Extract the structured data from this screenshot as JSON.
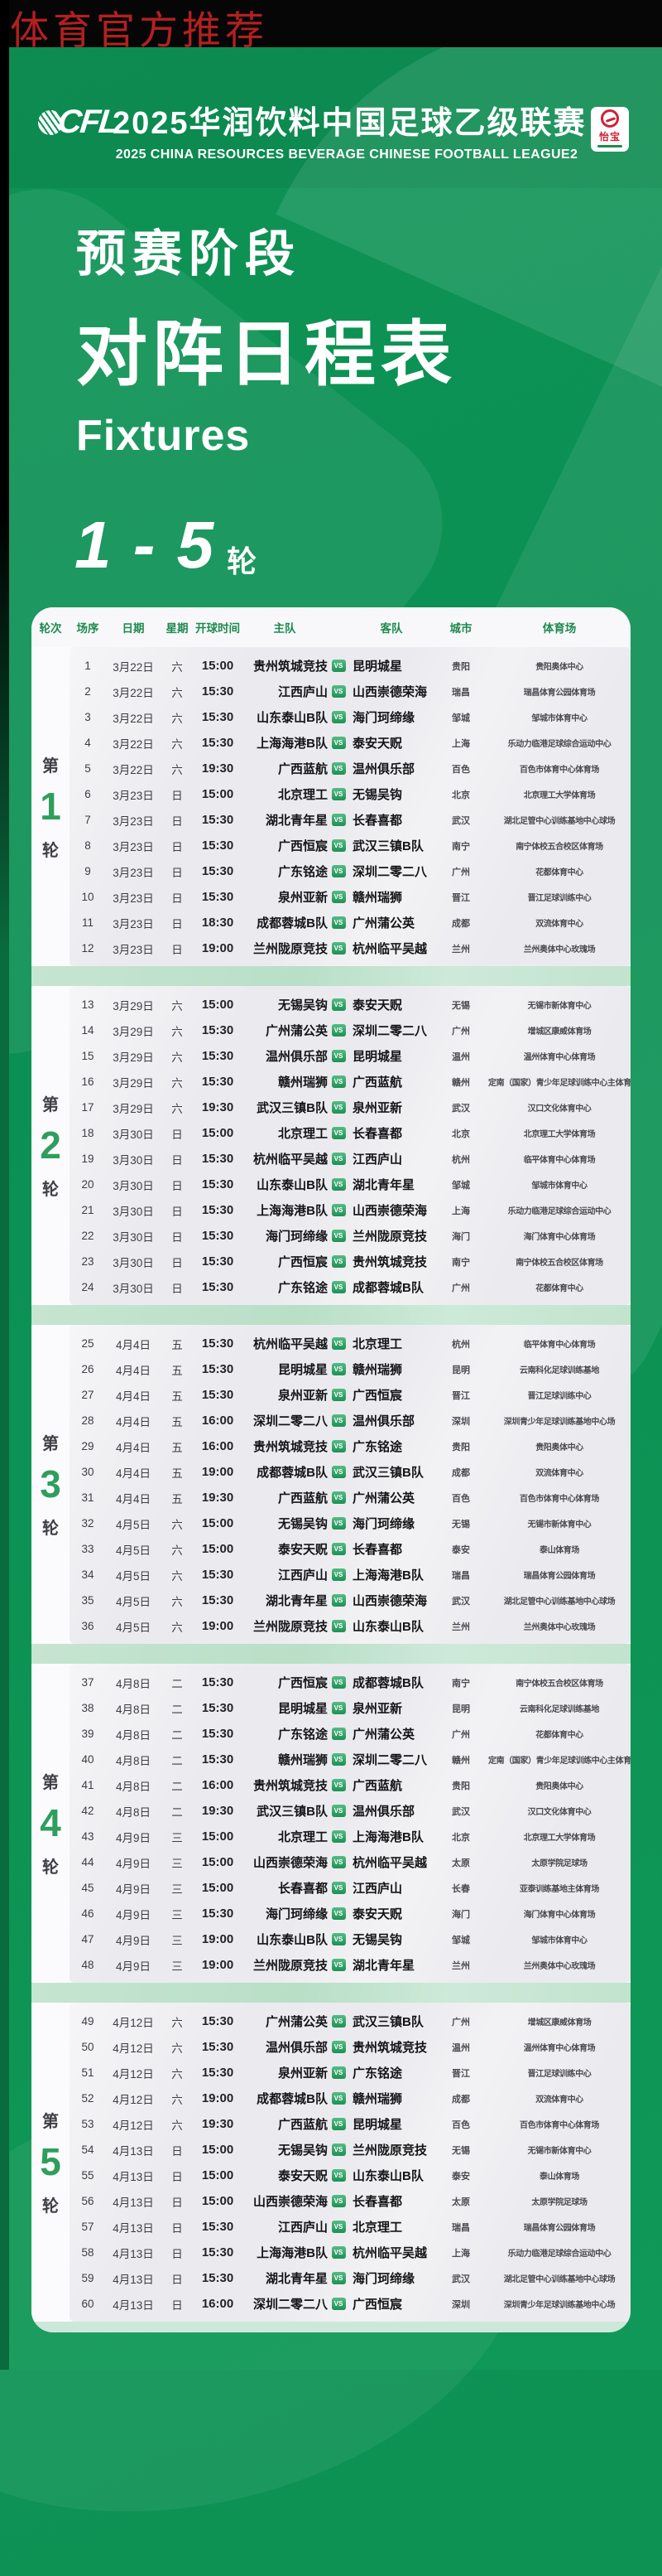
{
  "watermark": "体育官方推荐",
  "header": {
    "logo": "CFL",
    "title_cn": "2025华润饮料中国足球乙级联赛",
    "title_en": "2025 CHINA RESOURCES BEVERAGE CHINESE FOOTBALL LEAGUE2",
    "sponsor_name": "怡宝"
  },
  "hero": {
    "stage": "预赛阶段",
    "title": "对阵日程表",
    "subtitle": "Fixtures",
    "rounds_range": "1 - 5",
    "rounds_unit": "轮"
  },
  "colors": {
    "background_green": "#0e9355",
    "accent_green": "#2f9e5c",
    "header_label_green": "#1e8a4f",
    "watermark_red": "#b32020",
    "panel_gray": "#ebebef",
    "separator_green": "#c3e4cf"
  },
  "table": {
    "columns": [
      "轮次",
      "场序",
      "日期",
      "星期",
      "开球时间",
      "主队",
      "客队",
      "城市",
      "体育场"
    ],
    "vs_label": "VS",
    "round_prefix": "第",
    "round_suffix": "轮",
    "rounds": [
      {
        "round_number": "1",
        "matches": [
          {
            "seq": "1",
            "date": "3月22日",
            "week": "六",
            "time": "15:00",
            "home": "贵州筑城竞技",
            "away": "昆明城星",
            "city": "贵阳",
            "stadium": "贵阳奥体中心"
          },
          {
            "seq": "2",
            "date": "3月22日",
            "week": "六",
            "time": "15:30",
            "home": "江西庐山",
            "away": "山西崇德荣海",
            "city": "瑞昌",
            "stadium": "瑞昌体育公园体育场"
          },
          {
            "seq": "3",
            "date": "3月22日",
            "week": "六",
            "time": "15:30",
            "home": "山东泰山B队",
            "away": "海门珂缔缘",
            "city": "邹城",
            "stadium": "邹城市体育中心"
          },
          {
            "seq": "4",
            "date": "3月22日",
            "week": "六",
            "time": "15:30",
            "home": "上海海港B队",
            "away": "泰安天贶",
            "city": "上海",
            "stadium": "乐动力临港足球综合运动中心"
          },
          {
            "seq": "5",
            "date": "3月22日",
            "week": "六",
            "time": "19:30",
            "home": "广西蓝航",
            "away": "温州俱乐部",
            "city": "百色",
            "stadium": "百色市体育中心体育场"
          },
          {
            "seq": "6",
            "date": "3月23日",
            "week": "日",
            "time": "15:00",
            "home": "北京理工",
            "away": "无锡吴钩",
            "city": "北京",
            "stadium": "北京理工大学体育场"
          },
          {
            "seq": "7",
            "date": "3月23日",
            "week": "日",
            "time": "15:30",
            "home": "湖北青年星",
            "away": "长春喜都",
            "city": "武汉",
            "stadium": "湖北足管中心训练基地中心球场"
          },
          {
            "seq": "8",
            "date": "3月23日",
            "week": "日",
            "time": "15:30",
            "home": "广西恒宸",
            "away": "武汉三镇B队",
            "city": "南宁",
            "stadium": "南宁体校五合校区体育场"
          },
          {
            "seq": "9",
            "date": "3月23日",
            "week": "日",
            "time": "15:30",
            "home": "广东铭途",
            "away": "深圳二零二八",
            "city": "广州",
            "stadium": "花都体育中心"
          },
          {
            "seq": "10",
            "date": "3月23日",
            "week": "日",
            "time": "15:30",
            "home": "泉州亚新",
            "away": "赣州瑞狮",
            "city": "晋江",
            "stadium": "晋江足球训练中心"
          },
          {
            "seq": "11",
            "date": "3月23日",
            "week": "日",
            "time": "18:30",
            "home": "成都蓉城B队",
            "away": "广州蒲公英",
            "city": "成都",
            "stadium": "双流体育中心"
          },
          {
            "seq": "12",
            "date": "3月23日",
            "week": "日",
            "time": "19:00",
            "home": "兰州陇原竞技",
            "away": "杭州临平吴越",
            "city": "兰州",
            "stadium": "兰州奥体中心玫瑰场"
          }
        ]
      },
      {
        "round_number": "2",
        "matches": [
          {
            "seq": "13",
            "date": "3月29日",
            "week": "六",
            "time": "15:00",
            "home": "无锡吴钩",
            "away": "泰安天贶",
            "city": "无锡",
            "stadium": "无锡市新体育中心"
          },
          {
            "seq": "14",
            "date": "3月29日",
            "week": "六",
            "time": "15:30",
            "home": "广州蒲公英",
            "away": "深圳二零二八",
            "city": "广州",
            "stadium": "增城区康威体育场"
          },
          {
            "seq": "15",
            "date": "3月29日",
            "week": "六",
            "time": "15:30",
            "home": "温州俱乐部",
            "away": "昆明城星",
            "city": "温州",
            "stadium": "温州体育中心体育场"
          },
          {
            "seq": "16",
            "date": "3月29日",
            "week": "六",
            "time": "15:30",
            "home": "赣州瑞狮",
            "away": "广西蓝航",
            "city": "赣州",
            "stadium": "定南（国家）青少年足球训练中心主体育场"
          },
          {
            "seq": "17",
            "date": "3月29日",
            "week": "六",
            "time": "19:30",
            "home": "武汉三镇B队",
            "away": "泉州亚新",
            "city": "武汉",
            "stadium": "汉口文化体育中心"
          },
          {
            "seq": "18",
            "date": "3月30日",
            "week": "日",
            "time": "15:00",
            "home": "北京理工",
            "away": "长春喜都",
            "city": "北京",
            "stadium": "北京理工大学体育场"
          },
          {
            "seq": "19",
            "date": "3月30日",
            "week": "日",
            "time": "15:30",
            "home": "杭州临平吴越",
            "away": "江西庐山",
            "city": "杭州",
            "stadium": "临平体育中心体育场"
          },
          {
            "seq": "20",
            "date": "3月30日",
            "week": "日",
            "time": "15:30",
            "home": "山东泰山B队",
            "away": "湖北青年星",
            "city": "邹城",
            "stadium": "邹城市体育中心"
          },
          {
            "seq": "21",
            "date": "3月30日",
            "week": "日",
            "time": "15:30",
            "home": "上海海港B队",
            "away": "山西崇德荣海",
            "city": "上海",
            "stadium": "乐动力临港足球综合运动中心"
          },
          {
            "seq": "22",
            "date": "3月30日",
            "week": "日",
            "time": "15:30",
            "home": "海门珂缔缘",
            "away": "兰州陇原竞技",
            "city": "海门",
            "stadium": "海门体育中心体育场"
          },
          {
            "seq": "23",
            "date": "3月30日",
            "week": "日",
            "time": "15:30",
            "home": "广西恒宸",
            "away": "贵州筑城竞技",
            "city": "南宁",
            "stadium": "南宁体校五合校区体育场"
          },
          {
            "seq": "24",
            "date": "3月30日",
            "week": "日",
            "time": "15:30",
            "home": "广东铭途",
            "away": "成都蓉城B队",
            "city": "广州",
            "stadium": "花都体育中心"
          }
        ]
      },
      {
        "round_number": "3",
        "matches": [
          {
            "seq": "25",
            "date": "4月4日",
            "week": "五",
            "time": "15:30",
            "home": "杭州临平吴越",
            "away": "北京理工",
            "city": "杭州",
            "stadium": "临平体育中心体育场"
          },
          {
            "seq": "26",
            "date": "4月4日",
            "week": "五",
            "time": "15:30",
            "home": "昆明城星",
            "away": "赣州瑞狮",
            "city": "昆明",
            "stadium": "云南科化足球训练基地"
          },
          {
            "seq": "27",
            "date": "4月4日",
            "week": "五",
            "time": "15:30",
            "home": "泉州亚新",
            "away": "广西恒宸",
            "city": "晋江",
            "stadium": "晋江足球训练中心"
          },
          {
            "seq": "28",
            "date": "4月4日",
            "week": "五",
            "time": "16:00",
            "home": "深圳二零二八",
            "away": "温州俱乐部",
            "city": "深圳",
            "stadium": "深圳青少年足球训练基地中心场"
          },
          {
            "seq": "29",
            "date": "4月4日",
            "week": "五",
            "time": "16:00",
            "home": "贵州筑城竞技",
            "away": "广东铭途",
            "city": "贵阳",
            "stadium": "贵阳奥体中心"
          },
          {
            "seq": "30",
            "date": "4月4日",
            "week": "五",
            "time": "19:00",
            "home": "成都蓉城B队",
            "away": "武汉三镇B队",
            "city": "成都",
            "stadium": "双流体育中心"
          },
          {
            "seq": "31",
            "date": "4月4日",
            "week": "五",
            "time": "19:30",
            "home": "广西蓝航",
            "away": "广州蒲公英",
            "city": "百色",
            "stadium": "百色市体育中心体育场"
          },
          {
            "seq": "32",
            "date": "4月5日",
            "week": "六",
            "time": "15:00",
            "home": "无锡吴钩",
            "away": "海门珂缔缘",
            "city": "无锡",
            "stadium": "无锡市新体育中心"
          },
          {
            "seq": "33",
            "date": "4月5日",
            "week": "六",
            "time": "15:00",
            "home": "泰安天贶",
            "away": "长春喜都",
            "city": "泰安",
            "stadium": "泰山体育场"
          },
          {
            "seq": "34",
            "date": "4月5日",
            "week": "六",
            "time": "15:30",
            "home": "江西庐山",
            "away": "上海海港B队",
            "city": "瑞昌",
            "stadium": "瑞昌体育公园体育场"
          },
          {
            "seq": "35",
            "date": "4月5日",
            "week": "六",
            "time": "15:30",
            "home": "湖北青年星",
            "away": "山西崇德荣海",
            "city": "武汉",
            "stadium": "湖北足管中心训练基地中心球场"
          },
          {
            "seq": "36",
            "date": "4月5日",
            "week": "六",
            "time": "19:00",
            "home": "兰州陇原竞技",
            "away": "山东泰山B队",
            "city": "兰州",
            "stadium": "兰州奥体中心玫瑰场"
          }
        ]
      },
      {
        "round_number": "4",
        "matches": [
          {
            "seq": "37",
            "date": "4月8日",
            "week": "二",
            "time": "15:30",
            "home": "广西恒宸",
            "away": "成都蓉城B队",
            "city": "南宁",
            "stadium": "南宁体校五合校区体育场"
          },
          {
            "seq": "38",
            "date": "4月8日",
            "week": "二",
            "time": "15:30",
            "home": "昆明城星",
            "away": "泉州亚新",
            "city": "昆明",
            "stadium": "云南科化足球训练基地"
          },
          {
            "seq": "39",
            "date": "4月8日",
            "week": "二",
            "time": "15:30",
            "home": "广东铭途",
            "away": "广州蒲公英",
            "city": "广州",
            "stadium": "花都体育中心"
          },
          {
            "seq": "40",
            "date": "4月8日",
            "week": "二",
            "time": "15:30",
            "home": "赣州瑞狮",
            "away": "深圳二零二八",
            "city": "赣州",
            "stadium": "定南（国家）青少年足球训练中心主体育场"
          },
          {
            "seq": "41",
            "date": "4月8日",
            "week": "二",
            "time": "16:00",
            "home": "贵州筑城竞技",
            "away": "广西蓝航",
            "city": "贵阳",
            "stadium": "贵阳奥体中心"
          },
          {
            "seq": "42",
            "date": "4月8日",
            "week": "二",
            "time": "19:30",
            "home": "武汉三镇B队",
            "away": "温州俱乐部",
            "city": "武汉",
            "stadium": "汉口文化体育中心"
          },
          {
            "seq": "43",
            "date": "4月9日",
            "week": "三",
            "time": "15:00",
            "home": "北京理工",
            "away": "上海海港B队",
            "city": "北京",
            "stadium": "北京理工大学体育场"
          },
          {
            "seq": "44",
            "date": "4月9日",
            "week": "三",
            "time": "15:00",
            "home": "山西崇德荣海",
            "away": "杭州临平吴越",
            "city": "太原",
            "stadium": "太原学院足球场"
          },
          {
            "seq": "45",
            "date": "4月9日",
            "week": "三",
            "time": "15:00",
            "home": "长春喜都",
            "away": "江西庐山",
            "city": "长春",
            "stadium": "亚泰训练基地主体育场"
          },
          {
            "seq": "46",
            "date": "4月9日",
            "week": "三",
            "time": "15:30",
            "home": "海门珂缔缘",
            "away": "泰安天贶",
            "city": "海门",
            "stadium": "海门体育中心体育场"
          },
          {
            "seq": "47",
            "date": "4月9日",
            "week": "三",
            "time": "19:00",
            "home": "山东泰山B队",
            "away": "无锡吴钩",
            "city": "邹城",
            "stadium": "邹城市体育中心"
          },
          {
            "seq": "48",
            "date": "4月9日",
            "week": "三",
            "time": "19:00",
            "home": "兰州陇原竞技",
            "away": "湖北青年星",
            "city": "兰州",
            "stadium": "兰州奥体中心玫瑰场"
          }
        ]
      },
      {
        "round_number": "5",
        "matches": [
          {
            "seq": "49",
            "date": "4月12日",
            "week": "六",
            "time": "15:30",
            "home": "广州蒲公英",
            "away": "武汉三镇B队",
            "city": "广州",
            "stadium": "增城区康威体育场"
          },
          {
            "seq": "50",
            "date": "4月12日",
            "week": "六",
            "time": "15:30",
            "home": "温州俱乐部",
            "away": "贵州筑城竞技",
            "city": "温州",
            "stadium": "温州体育中心体育场"
          },
          {
            "seq": "51",
            "date": "4月12日",
            "week": "六",
            "time": "15:30",
            "home": "泉州亚新",
            "away": "广东铭途",
            "city": "晋江",
            "stadium": "晋江足球训练中心"
          },
          {
            "seq": "52",
            "date": "4月12日",
            "week": "六",
            "time": "19:00",
            "home": "成都蓉城B队",
            "away": "赣州瑞狮",
            "city": "成都",
            "stadium": "双流体育中心"
          },
          {
            "seq": "53",
            "date": "4月12日",
            "week": "六",
            "time": "19:30",
            "home": "广西蓝航",
            "away": "昆明城星",
            "city": "百色",
            "stadium": "百色市体育中心体育场"
          },
          {
            "seq": "54",
            "date": "4月13日",
            "week": "日",
            "time": "15:00",
            "home": "无锡吴钩",
            "away": "兰州陇原竞技",
            "city": "无锡",
            "stadium": "无锡市新体育中心"
          },
          {
            "seq": "55",
            "date": "4月13日",
            "week": "日",
            "time": "15:00",
            "home": "泰安天贶",
            "away": "山东泰山B队",
            "city": "泰安",
            "stadium": "泰山体育场"
          },
          {
            "seq": "56",
            "date": "4月13日",
            "week": "日",
            "time": "15:00",
            "home": "山西崇德荣海",
            "away": "长春喜都",
            "city": "太原",
            "stadium": "太原学院足球场"
          },
          {
            "seq": "57",
            "date": "4月13日",
            "week": "日",
            "time": "15:30",
            "home": "江西庐山",
            "away": "北京理工",
            "city": "瑞昌",
            "stadium": "瑞昌体育公园体育场"
          },
          {
            "seq": "58",
            "date": "4月13日",
            "week": "日",
            "time": "15:30",
            "home": "上海海港B队",
            "away": "杭州临平吴越",
            "city": "上海",
            "stadium": "乐动力临港足球综合运动中心"
          },
          {
            "seq": "59",
            "date": "4月13日",
            "week": "日",
            "time": "15:30",
            "home": "湖北青年星",
            "away": "海门珂缔缘",
            "city": "武汉",
            "stadium": "湖北足管中心训练基地中心球场"
          },
          {
            "seq": "60",
            "date": "4月13日",
            "week": "日",
            "time": "16:00",
            "home": "深圳二零二八",
            "away": "广西恒宸",
            "city": "深圳",
            "stadium": "深圳青少年足球训练基地中心场"
          }
        ]
      }
    ]
  }
}
